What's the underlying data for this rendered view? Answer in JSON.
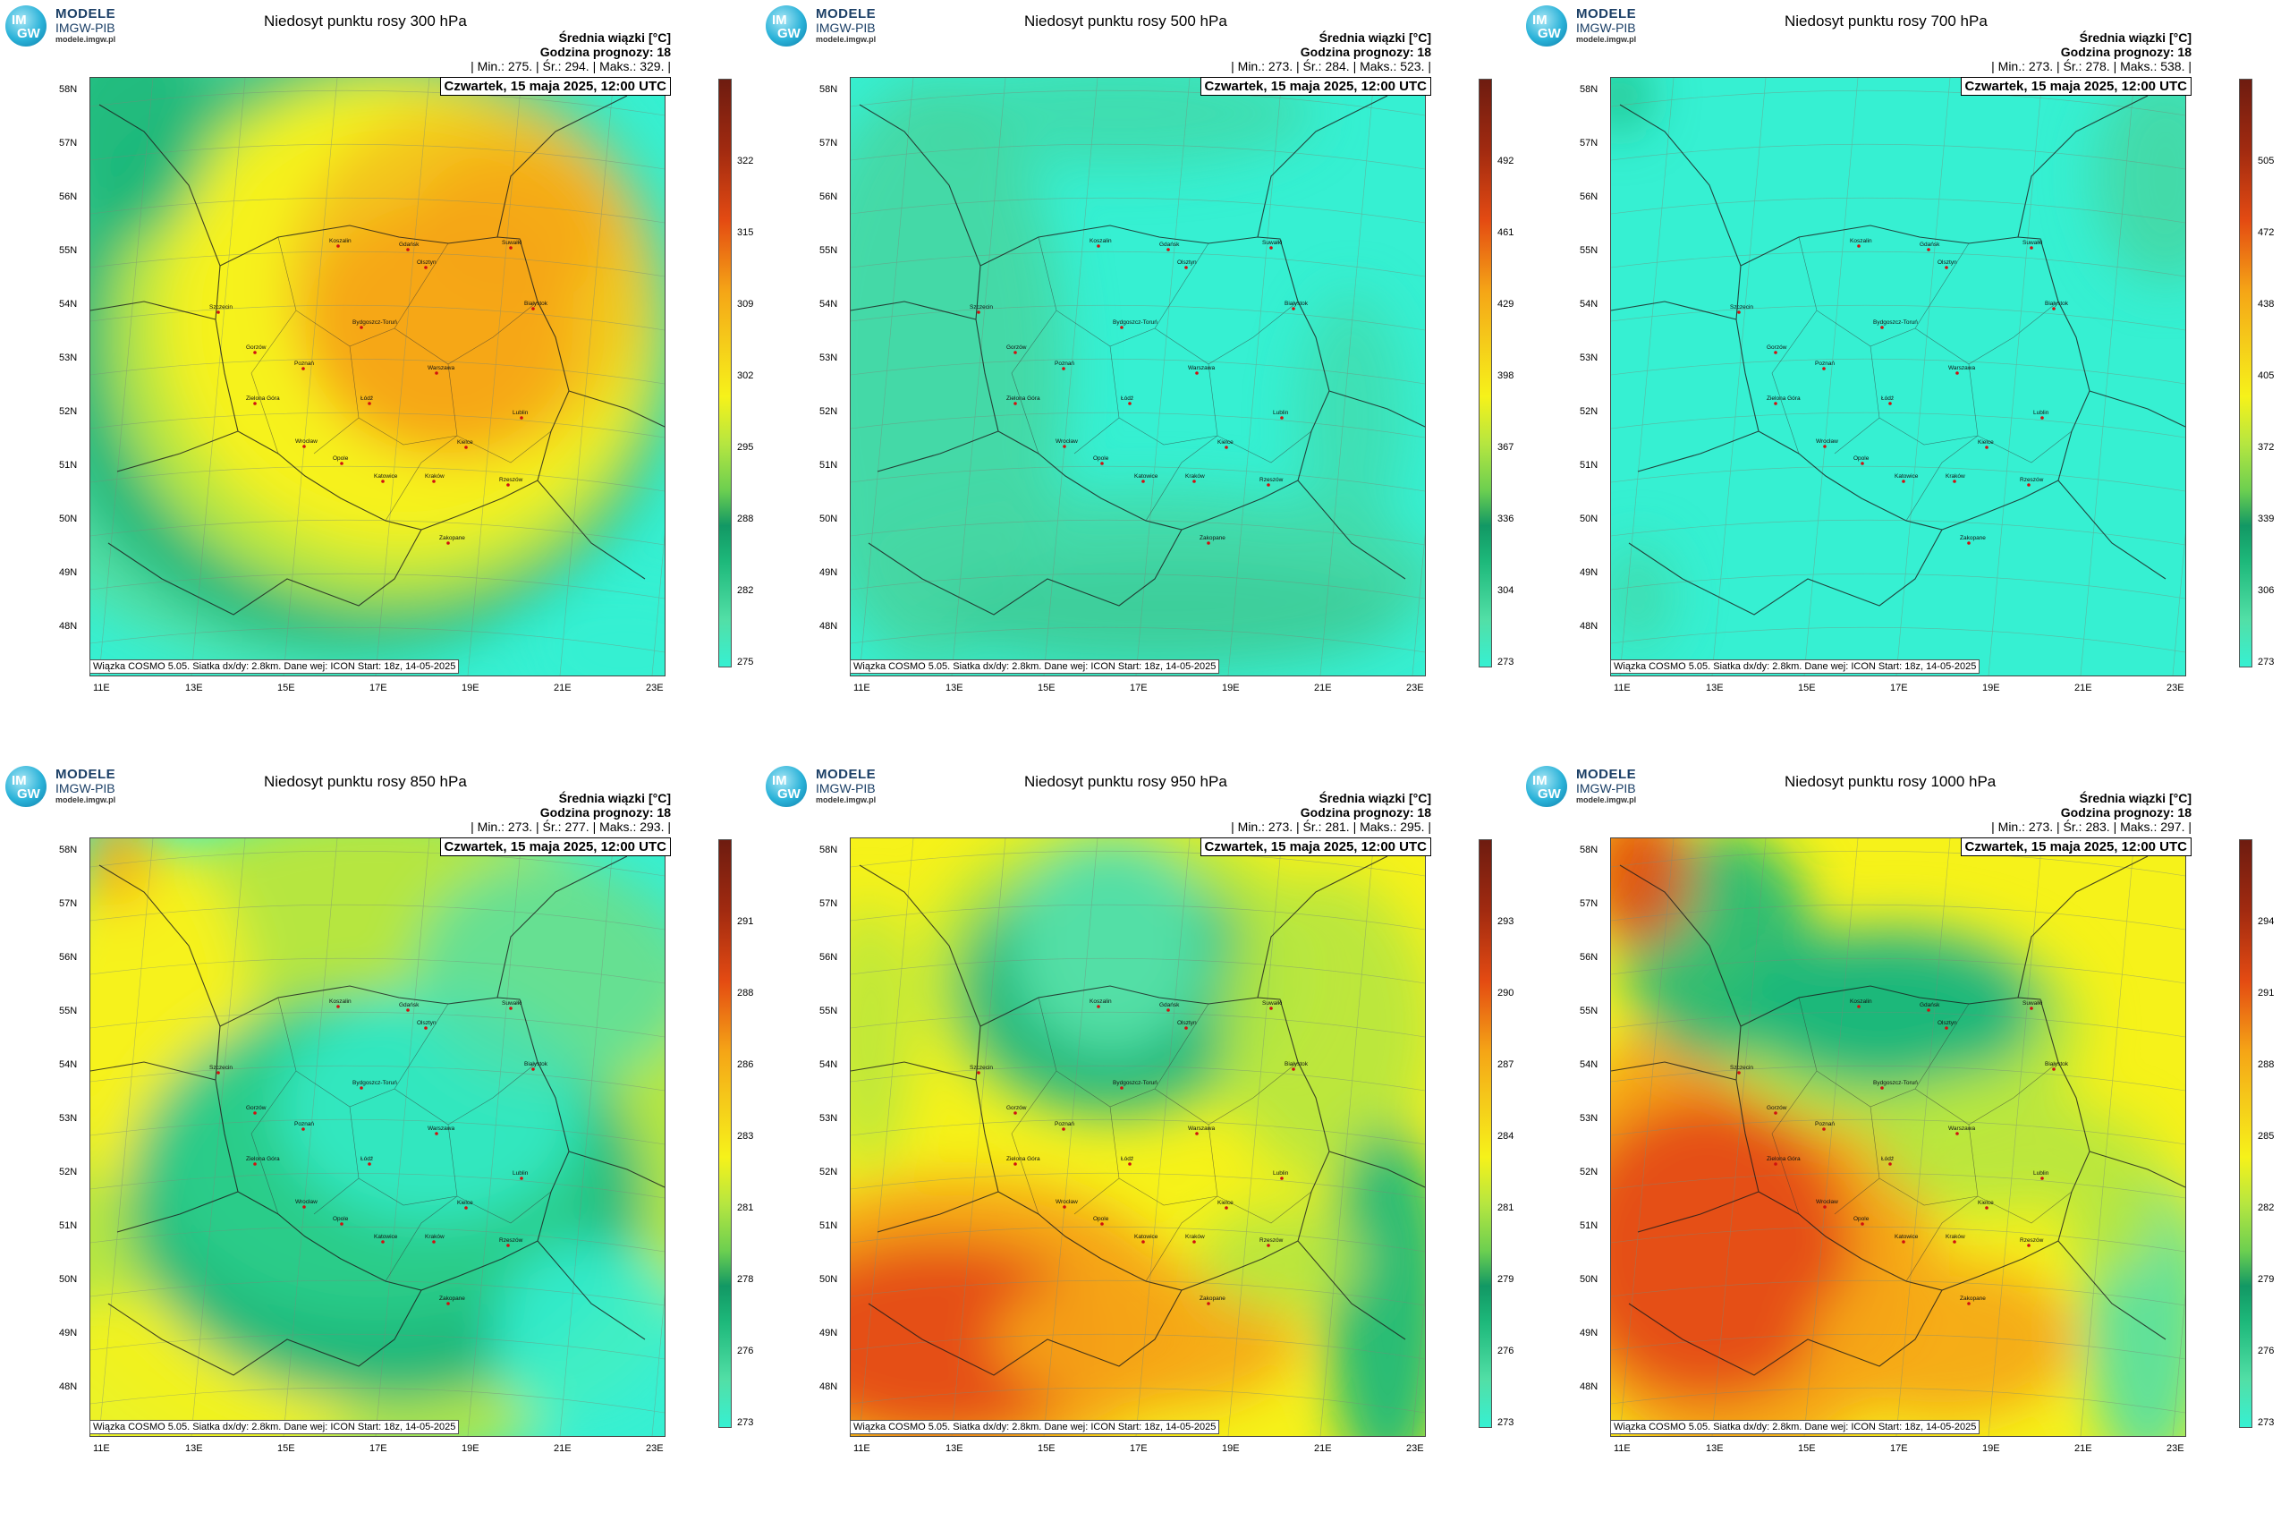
{
  "common": {
    "logo": {
      "badge_line1": "IM",
      "badge_line2": "GW",
      "name": "MODELE",
      "org": "IMGW-PIB",
      "url": "modele.imgw.pl"
    },
    "info_line1": "Średnia wiązki [°C]",
    "info_line2": "Godzina prognozy: 18",
    "date": "Czwartek, 15 maja 2025, 12:00 UTC",
    "footer": "Wiązka COSMO 5.05. Siatka dx/dy: 2.8km. Dane wej: ICON Start: 18z, 14-05-2025",
    "lat_labels": [
      "58N",
      "57N",
      "56N",
      "55N",
      "54N",
      "53N",
      "52N",
      "51N",
      "50N",
      "49N",
      "48N"
    ],
    "lon_labels": [
      "11E",
      "13E",
      "15E",
      "17E",
      "19E",
      "21E",
      "23E"
    ],
    "cities": [
      "Gdańsk",
      "Koszalin",
      "Olsztyn",
      "Suwałki",
      "Szczecin",
      "Białystok",
      "Bydgoszcz-Toruń",
      "Gorzów",
      "Poznań",
      "Warszawa",
      "Zielona Góra",
      "Łódź",
      "Lublin",
      "Wrocław",
      "Kielce",
      "Opole",
      "Katowice",
      "Kraków",
      "Rzeszów",
      "Zakopane"
    ],
    "colors": {
      "cyan": "#36f0d2",
      "green_light": "#52dfa6",
      "green": "#1db87a",
      "green_dark": "#129864",
      "yellowgreen": "#b6e640",
      "yellow": "#f6f21a",
      "orange": "#f5a516",
      "red": "#e44b12",
      "darkred": "#6e1c10"
    }
  },
  "panels": [
    {
      "title": "Niedosyt punktu rosy 300 hPa",
      "stats": "| Min.:    275. | Śr.:    294. | Maks.:    329. |",
      "colorbar_ticks": [
        "322",
        "315",
        "309",
        "302",
        "295",
        "288",
        "282",
        "275"
      ],
      "pattern": "p300"
    },
    {
      "title": "Niedosyt punktu rosy 500 hPa",
      "stats": "| Min.:    273. | Śr.:    284. | Maks.:    523. |",
      "colorbar_ticks": [
        "492",
        "461",
        "429",
        "398",
        "367",
        "336",
        "304",
        "273"
      ],
      "pattern": "p500"
    },
    {
      "title": "Niedosyt punktu rosy 700 hPa",
      "stats": "| Min.:    273. | Śr.:    278. | Maks.:    538. |",
      "colorbar_ticks": [
        "505",
        "472",
        "438",
        "405",
        "372",
        "339",
        "306",
        "273"
      ],
      "pattern": "p700"
    },
    {
      "title": "Niedosyt punktu rosy 850 hPa",
      "stats": "| Min.:    273. | Śr.:    277. | Maks.:    293. |",
      "colorbar_ticks": [
        "291",
        "288",
        "286",
        "283",
        "281",
        "278",
        "276",
        "273"
      ],
      "pattern": "p850"
    },
    {
      "title": "Niedosyt punktu rosy 950 hPa",
      "stats": "| Min.:    273. | Śr.:    281. | Maks.:    295. |",
      "colorbar_ticks": [
        "293",
        "290",
        "287",
        "284",
        "281",
        "279",
        "276",
        "273"
      ],
      "pattern": "p950"
    },
    {
      "title": "Niedosyt punktu rosy 1000 hPa",
      "stats": "| Min.:    273. | Śr.:    283. | Maks.:    297. |",
      "colorbar_ticks": [
        "294",
        "291",
        "288",
        "285",
        "282",
        "279",
        "276",
        "273"
      ],
      "pattern": "p1000"
    }
  ]
}
